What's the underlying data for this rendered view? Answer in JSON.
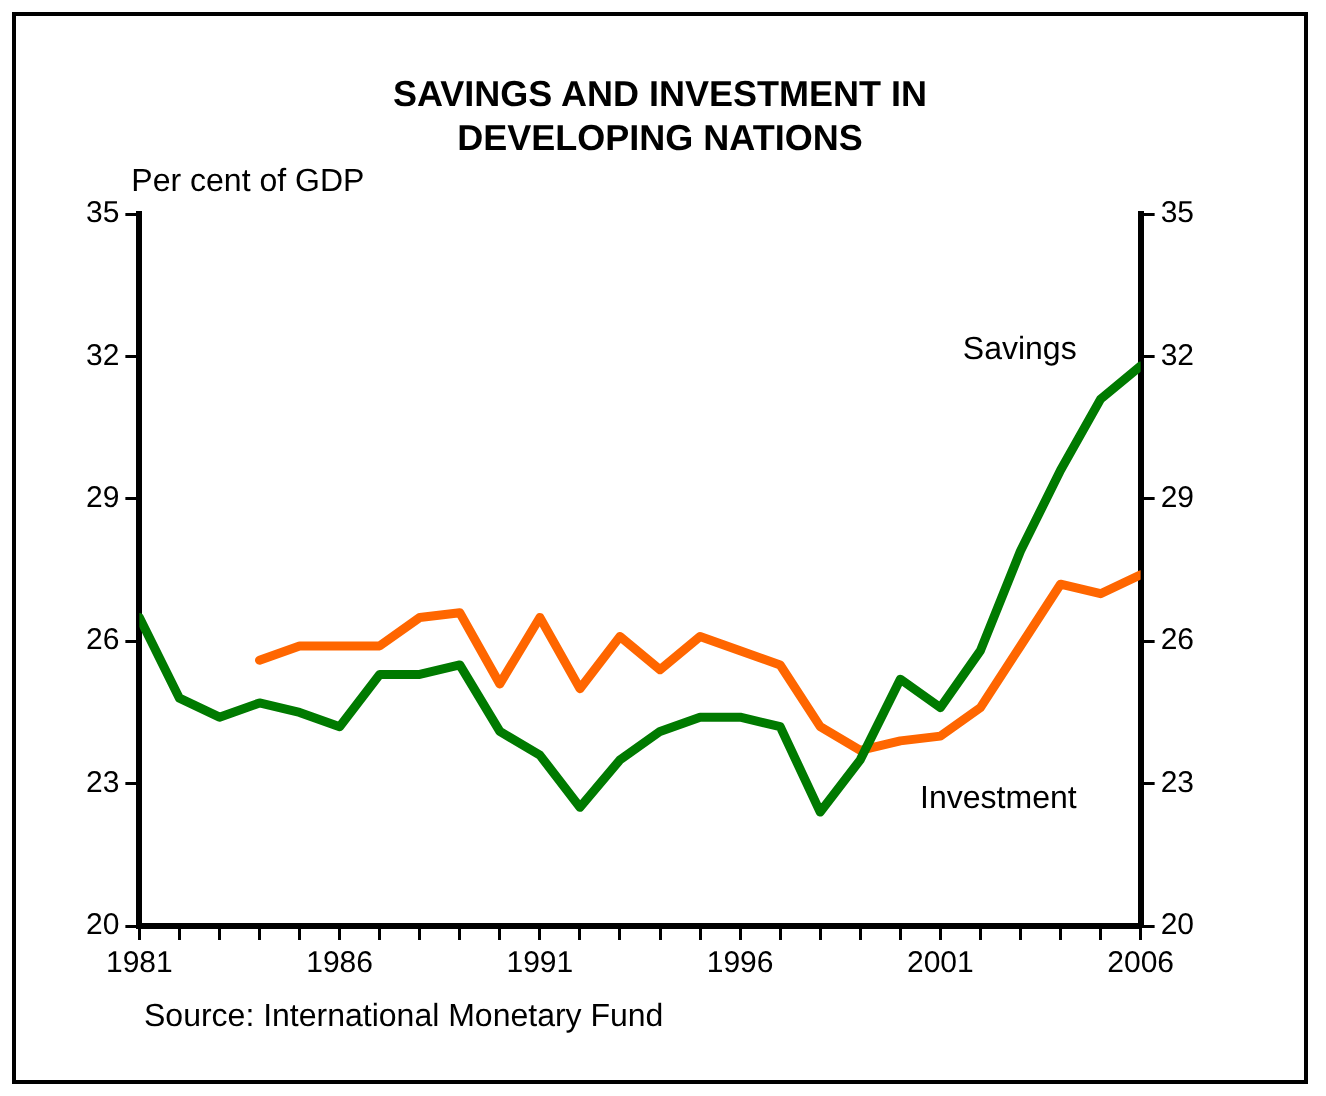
{
  "chart_data": {
    "type": "line",
    "title": "SAVINGS AND INVESTMENT IN DEVELOPING NATIONS",
    "ylabel": "Per cent of GDP",
    "x": [
      1981,
      1982,
      1983,
      1984,
      1985,
      1986,
      1987,
      1988,
      1989,
      1990,
      1991,
      1992,
      1993,
      1994,
      1995,
      1996,
      1997,
      1998,
      1999,
      2000,
      2001,
      2002,
      2003,
      2004,
      2005,
      2006
    ],
    "series": [
      {
        "name": "Savings",
        "color": "#007a00",
        "values": [
          26.5,
          24.8,
          24.4,
          24.7,
          24.5,
          24.2,
          25.3,
          25.3,
          25.5,
          24.1,
          23.6,
          22.5,
          23.5,
          24.1,
          24.4,
          24.4,
          24.2,
          22.4,
          23.5,
          25.2,
          24.6,
          25.8,
          27.9,
          29.6,
          31.1,
          31.8
        ]
      },
      {
        "name": "Investment",
        "color": "#ff6600",
        "values": [
          null,
          null,
          null,
          25.6,
          25.9,
          25.9,
          25.9,
          26.5,
          26.6,
          25.1,
          26.5,
          25.0,
          26.1,
          25.4,
          26.1,
          25.8,
          25.5,
          24.2,
          23.7,
          23.9,
          24.0,
          24.6,
          25.9,
          27.2,
          27.0,
          27.4
        ]
      }
    ],
    "xlim": [
      1981,
      2006
    ],
    "xticks": [
      1981,
      {
        "value": 1982,
        "label": null
      },
      {
        "value": 1983,
        "label": null
      },
      {
        "value": 1984,
        "label": null
      },
      {
        "value": 1985,
        "label": null
      },
      1986,
      {
        "value": 1987,
        "label": null
      },
      {
        "value": 1988,
        "label": null
      },
      {
        "value": 1989,
        "label": null
      },
      {
        "value": 1990,
        "label": null
      },
      1991,
      {
        "value": 1992,
        "label": null
      },
      {
        "value": 1993,
        "label": null
      },
      {
        "value": 1994,
        "label": null
      },
      {
        "value": 1995,
        "label": null
      },
      1996,
      {
        "value": 1997,
        "label": null
      },
      {
        "value": 1998,
        "label": null
      },
      {
        "value": 1999,
        "label": null
      },
      {
        "value": 2000,
        "label": null
      },
      2001,
      {
        "value": 2002,
        "label": null
      },
      {
        "value": 2003,
        "label": null
      },
      {
        "value": 2004,
        "label": null
      },
      {
        "value": 2005,
        "label": null
      },
      2006
    ],
    "ylim": [
      20,
      35
    ],
    "yticks": [
      20,
      23,
      26,
      29,
      32,
      35
    ],
    "y2lim": [
      20,
      35
    ],
    "y2ticks": [
      20,
      23,
      26,
      29,
      32,
      35
    ],
    "grid": false,
    "legend": false,
    "marker": "none",
    "line_style": "solid",
    "annotations": [
      "Source: International Monetary Fund"
    ]
  }
}
